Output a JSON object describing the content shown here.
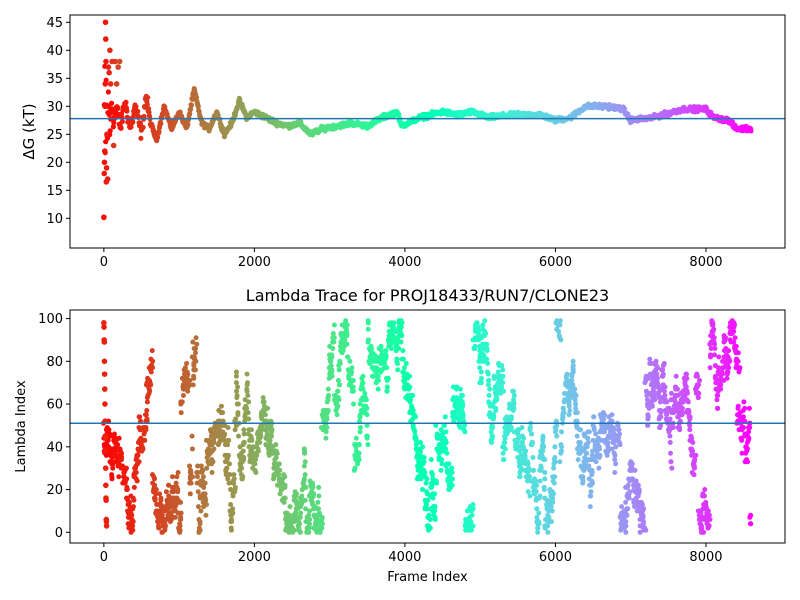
{
  "chart_data": [
    {
      "type": "scatter",
      "title": "",
      "xlabel": "",
      "ylabel": "ΔG (kT)",
      "xlim": [
        -450,
        9050
      ],
      "ylim": [
        4.7,
        46.3
      ],
      "xticks": [
        0,
        2000,
        4000,
        6000,
        8000
      ],
      "xtick_labels": [
        "0",
        "2000",
        "4000",
        "6000",
        "8000"
      ],
      "yticks": [
        10,
        15,
        20,
        25,
        30,
        35,
        40,
        45
      ],
      "ytick_labels": [
        "10",
        "15",
        "20",
        "25",
        "30",
        "35",
        "40",
        "45"
      ],
      "hline": 27.8,
      "hline_color": "#1f77b4",
      "colormap": "rainbow",
      "n_frames": 8600,
      "grid": false,
      "series": [
        {
          "trace_keypoints": [
            [
              0,
              10
            ],
            [
              10,
              42
            ],
            [
              20,
              16
            ],
            [
              30,
              35
            ],
            [
              45,
              22
            ],
            [
              60,
              33
            ],
            [
              80,
              24
            ],
            [
              100,
              31
            ],
            [
              130,
              27
            ],
            [
              170,
              30
            ],
            [
              220,
              26
            ],
            [
              280,
              31
            ],
            [
              350,
              26
            ],
            [
              420,
              30
            ],
            [
              500,
              25
            ],
            [
              560,
              32
            ],
            [
              620,
              27
            ],
            [
              700,
              24
            ],
            [
              800,
              30
            ],
            [
              900,
              26
            ],
            [
              1000,
              29
            ],
            [
              1100,
              26
            ],
            [
              1200,
              33
            ],
            [
              1300,
              27
            ],
            [
              1400,
              26
            ],
            [
              1500,
              29
            ],
            [
              1600,
              25
            ],
            [
              1700,
              27
            ],
            [
              1800,
              31
            ],
            [
              1900,
              28
            ],
            [
              2000,
              29
            ],
            [
              2150,
              28
            ],
            [
              2300,
              27
            ],
            [
              2450,
              26.5
            ],
            [
              2600,
              27
            ],
            [
              2750,
              25
            ],
            [
              2900,
              26
            ],
            [
              3100,
              26.5
            ],
            [
              3300,
              27
            ],
            [
              3500,
              26.5
            ],
            [
              3700,
              28
            ],
            [
              3900,
              29
            ],
            [
              3950,
              26.5
            ],
            [
              4200,
              28
            ],
            [
              4500,
              29
            ],
            [
              4700,
              28.5
            ],
            [
              4900,
              29
            ],
            [
              5100,
              28
            ],
            [
              5300,
              28.3
            ],
            [
              5500,
              28.5
            ],
            [
              5800,
              28.5
            ],
            [
              6000,
              27.5
            ],
            [
              6200,
              28
            ],
            [
              6400,
              30
            ],
            [
              6700,
              30
            ],
            [
              6900,
              29.5
            ],
            [
              7000,
              27.5
            ],
            [
              7300,
              28
            ],
            [
              7700,
              29.5
            ],
            [
              8000,
              29.5
            ],
            [
              8100,
              28
            ],
            [
              8300,
              27.5
            ],
            [
              8400,
              26
            ],
            [
              8600,
              26
            ]
          ],
          "early_outliers": [
            [
              0,
              10.2
            ],
            [
              5,
              18
            ],
            [
              8,
              20
            ],
            [
              12,
              22
            ],
            [
              15,
              30
            ],
            [
              18,
              34
            ],
            [
              22,
              45
            ],
            [
              25,
              42
            ],
            [
              28,
              38
            ],
            [
              32,
              16.5
            ],
            [
              36,
              19
            ],
            [
              40,
              25
            ],
            [
              50,
              17
            ],
            [
              60,
              37
            ],
            [
              70,
              36
            ],
            [
              80,
              40
            ],
            [
              90,
              34
            ],
            [
              110,
              38
            ],
            [
              130,
              23
            ],
            [
              150,
              38
            ],
            [
              170,
              34
            ],
            [
              190,
              37
            ],
            [
              210,
              38
            ]
          ]
        }
      ]
    },
    {
      "type": "scatter",
      "title": "Lambda Trace for PROJ18433/RUN7/CLONE23",
      "xlabel": "Frame Index",
      "ylabel": "Lambda Index",
      "xlim": [
        -450,
        9050
      ],
      "ylim": [
        -5,
        104
      ],
      "xticks": [
        0,
        2000,
        4000,
        6000,
        8000
      ],
      "xtick_labels": [
        "0",
        "2000",
        "4000",
        "6000",
        "8000"
      ],
      "yticks": [
        0,
        20,
        40,
        60,
        80,
        100
      ],
      "ytick_labels": [
        "0",
        "20",
        "40",
        "60",
        "80",
        "100"
      ],
      "hline": 51,
      "hline_color": "#1f77b4",
      "colormap": "rainbow",
      "n_frames": 8600,
      "grid": false,
      "series": [
        {
          "lambda_min": 0,
          "lambda_max": 99,
          "distribution": "frames wander uniformly between lambda 0 and 99, with recurring vertical streaks",
          "early_outliers": [
            [
              0,
              98
            ],
            [
              2,
              96
            ],
            [
              4,
              90
            ],
            [
              6,
              89
            ],
            [
              8,
              80
            ],
            [
              10,
              74
            ],
            [
              12,
              67
            ],
            [
              14,
              60
            ],
            [
              16,
              52
            ],
            [
              18,
              45
            ],
            [
              20,
              44
            ],
            [
              22,
              38
            ],
            [
              24,
              30
            ],
            [
              26,
              22
            ],
            [
              28,
              16
            ],
            [
              30,
              15
            ],
            [
              32,
              6
            ],
            [
              34,
              5
            ],
            [
              36,
              3
            ]
          ]
        }
      ]
    }
  ]
}
